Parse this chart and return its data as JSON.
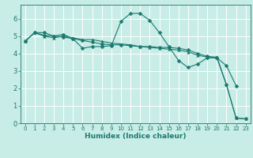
{
  "xlabel": "Humidex (Indice chaleur)",
  "xlim": [
    -0.5,
    23.5
  ],
  "ylim": [
    0,
    6.8
  ],
  "xticks": [
    0,
    1,
    2,
    3,
    4,
    5,
    6,
    7,
    8,
    9,
    10,
    11,
    12,
    13,
    14,
    15,
    16,
    17,
    18,
    19,
    20,
    21,
    22,
    23
  ],
  "yticks": [
    0,
    1,
    2,
    3,
    4,
    5,
    6
  ],
  "bg_color": "#c8ece6",
  "grid_color": "#ffffff",
  "line_color": "#1a7a6e",
  "line1_x": [
    0,
    1,
    2,
    3,
    4,
    5,
    6,
    7,
    8,
    9,
    10,
    11,
    12,
    13,
    14,
    15,
    16,
    17,
    18,
    19,
    20,
    21,
    22,
    23
  ],
  "line1_y": [
    4.7,
    5.2,
    5.2,
    5.0,
    4.95,
    4.85,
    4.75,
    4.65,
    4.55,
    4.5,
    4.5,
    4.45,
    4.4,
    4.4,
    4.35,
    4.35,
    4.3,
    4.2,
    4.0,
    3.85,
    3.75,
    2.2,
    0.3,
    0.25
  ],
  "line2_x": [
    0,
    1,
    2,
    3,
    4,
    5,
    6,
    7,
    8,
    9,
    10,
    11,
    12,
    13,
    14,
    15,
    16,
    17,
    18,
    19,
    20,
    21,
    22
  ],
  "line2_y": [
    4.7,
    5.2,
    5.05,
    5.0,
    5.1,
    4.85,
    4.3,
    4.4,
    4.4,
    4.45,
    5.85,
    6.3,
    6.3,
    5.9,
    5.2,
    4.4,
    3.6,
    3.2,
    3.4,
    3.75,
    3.75,
    3.3,
    2.15
  ],
  "line3_x": [
    0,
    1,
    2,
    3,
    4,
    5,
    6,
    7,
    8,
    9,
    10,
    11,
    12,
    13,
    14,
    15,
    16,
    17,
    18,
    19,
    20,
    21,
    22,
    23
  ],
  "line3_y": [
    4.7,
    5.2,
    5.0,
    4.9,
    5.0,
    4.9,
    4.8,
    4.8,
    4.7,
    4.6,
    4.55,
    4.5,
    4.4,
    4.35,
    4.3,
    4.25,
    4.2,
    4.1,
    3.9,
    3.8,
    3.8,
    2.2,
    0.3,
    0.25
  ]
}
